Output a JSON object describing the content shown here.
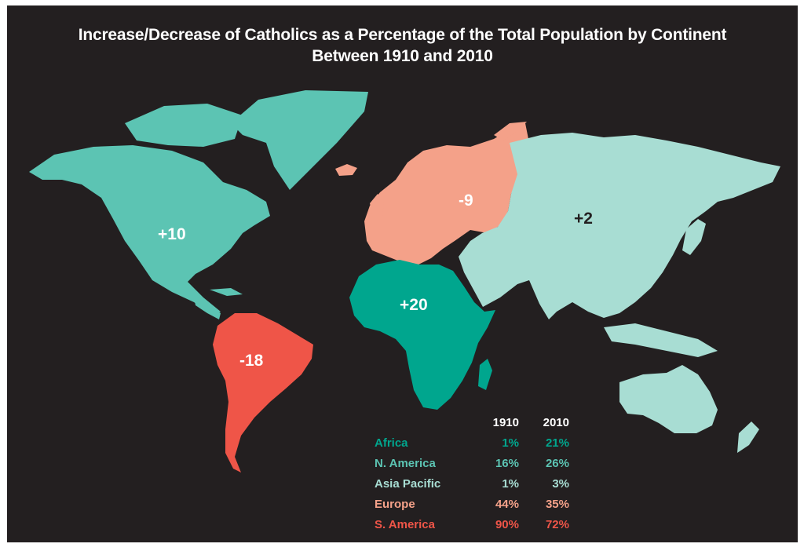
{
  "title": {
    "line1": "Increase/Decrease of Catholics as a Percentage of the Total Population by Continent",
    "line2": "Between 1910 and 2010"
  },
  "continents": {
    "north_america": {
      "name": "N. America",
      "change": "+10",
      "color": "#5cc4b3",
      "label_color": "#ffffff"
    },
    "south_america": {
      "name": "S. America",
      "change": "-18",
      "color": "#ef5548",
      "label_color": "#ffffff"
    },
    "europe": {
      "name": "Europe",
      "change": "-9",
      "color": "#f4a189",
      "label_color": "#ffffff"
    },
    "africa": {
      "name": "Africa",
      "change": "+20",
      "color": "#00a68e",
      "label_color": "#ffffff"
    },
    "asia_pacific": {
      "name": "Asia Pacific",
      "change": "+2",
      "color": "#a8ddd3",
      "label_color": "#231f20"
    }
  },
  "legend": {
    "headers": [
      "1910",
      "2010"
    ],
    "rows": [
      {
        "name": "Africa",
        "y1910": "1%",
        "y2010": "21%",
        "color": "#00a68e"
      },
      {
        "name": "N. America",
        "y1910": "16%",
        "y2010": "26%",
        "color": "#5cc4b3"
      },
      {
        "name": "Asia Pacific",
        "y1910": "1%",
        "y2010": "3%",
        "color": "#a8ddd3"
      },
      {
        "name": "Europe",
        "y1910": "44%",
        "y2010": "35%",
        "color": "#f4a189"
      },
      {
        "name": "S. America",
        "y1910": "90%",
        "y2010": "72%",
        "color": "#ef5548"
      }
    ]
  }
}
